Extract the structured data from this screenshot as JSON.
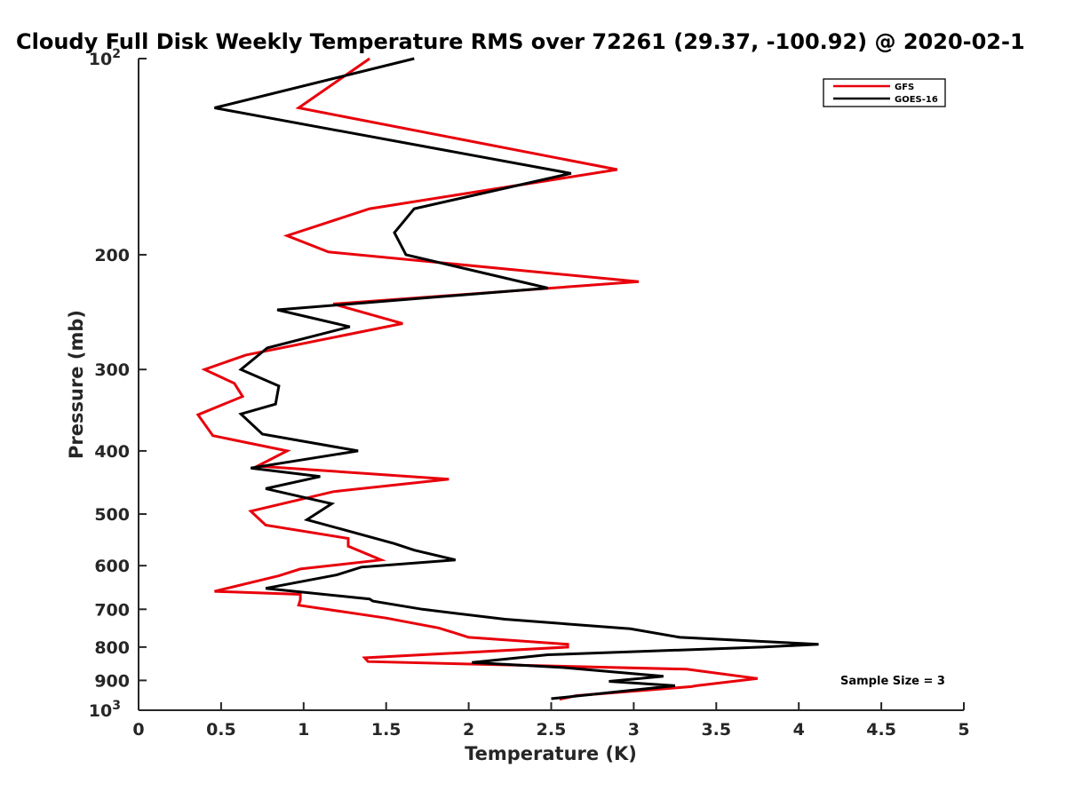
{
  "chart_data": {
    "type": "line",
    "title": "Cloudy Full Disk Weekly Temperature RMS over 72261 (29.37, -100.92) @ 2020-02-1",
    "xlabel": "Temperature (K)",
    "ylabel": "Pressure (mb)",
    "xlim": [
      0,
      5
    ],
    "ylim": [
      100,
      1000
    ],
    "y_scale": "log",
    "y_reversed": true,
    "grid": false,
    "legend_position": "top-right",
    "x_ticks": [
      {
        "value": 0,
        "label": "0"
      },
      {
        "value": 0.5,
        "label": "0.5"
      },
      {
        "value": 1,
        "label": "1"
      },
      {
        "value": 1.5,
        "label": "1.5"
      },
      {
        "value": 2,
        "label": "2"
      },
      {
        "value": 2.5,
        "label": "2.5"
      },
      {
        "value": 3,
        "label": "3"
      },
      {
        "value": 3.5,
        "label": "3.5"
      },
      {
        "value": 4,
        "label": "4"
      },
      {
        "value": 4.5,
        "label": "4.5"
      },
      {
        "value": 5,
        "label": "5"
      }
    ],
    "y_ticks": [
      {
        "value": 100,
        "label": "10",
        "sup": "2"
      },
      {
        "value": 200,
        "label": "200"
      },
      {
        "value": 300,
        "label": "300"
      },
      {
        "value": 400,
        "label": "400"
      },
      {
        "value": 500,
        "label": "500"
      },
      {
        "value": 600,
        "label": "600"
      },
      {
        "value": 700,
        "label": "700"
      },
      {
        "value": 800,
        "label": "800"
      },
      {
        "value": 900,
        "label": "900"
      },
      {
        "value": 1000,
        "label": "10",
        "sup": "3"
      }
    ],
    "annotation": "Sample Size = 3",
    "series": [
      {
        "name": "GFS",
        "color": "#e8000b",
        "points": [
          [
            1.4,
            100
          ],
          [
            0.97,
            119
          ],
          [
            2.9,
            148
          ],
          [
            1.4,
            170
          ],
          [
            0.9,
            187
          ],
          [
            1.15,
            198
          ],
          [
            3.03,
            220
          ],
          [
            1.18,
            238
          ],
          [
            1.6,
            255
          ],
          [
            0.65,
            285
          ],
          [
            0.4,
            300
          ],
          [
            0.58,
            315
          ],
          [
            0.63,
            330
          ],
          [
            0.36,
            352
          ],
          [
            0.45,
            379
          ],
          [
            0.9,
            400
          ],
          [
            0.72,
            422
          ],
          [
            1.88,
            442
          ],
          [
            1.18,
            462
          ],
          [
            0.68,
            495
          ],
          [
            0.77,
            520
          ],
          [
            1.27,
            545
          ],
          [
            1.27,
            560
          ],
          [
            1.47,
            588
          ],
          [
            0.98,
            607
          ],
          [
            0.85,
            622
          ],
          [
            0.46,
            657
          ],
          [
            0.98,
            664
          ],
          [
            0.98,
            677
          ],
          [
            0.97,
            690
          ],
          [
            1.5,
            722
          ],
          [
            1.82,
            748
          ],
          [
            2.0,
            773
          ],
          [
            2.6,
            792
          ],
          [
            2.6,
            800
          ],
          [
            1.37,
            831
          ],
          [
            1.39,
            842
          ],
          [
            3.32,
            865
          ],
          [
            3.75,
            894
          ],
          [
            3.38,
            917
          ],
          [
            3.35,
            920
          ],
          [
            2.65,
            950
          ],
          [
            2.55,
            962
          ]
        ]
      },
      {
        "name": "GOES-16",
        "color": "#000000",
        "points": [
          [
            1.67,
            100
          ],
          [
            0.46,
            119
          ],
          [
            2.62,
            150
          ],
          [
            1.67,
            170
          ],
          [
            1.55,
            185
          ],
          [
            1.62,
            200
          ],
          [
            2.48,
            225
          ],
          [
            0.84,
            243
          ],
          [
            1.28,
            258
          ],
          [
            0.78,
            278
          ],
          [
            0.62,
            300
          ],
          [
            0.85,
            318
          ],
          [
            0.83,
            339
          ],
          [
            0.62,
            351
          ],
          [
            0.75,
            377
          ],
          [
            1.33,
            400
          ],
          [
            0.68,
            425
          ],
          [
            1.1,
            438
          ],
          [
            0.77,
            457
          ],
          [
            1.17,
            482
          ],
          [
            1.02,
            510
          ],
          [
            1.55,
            555
          ],
          [
            1.67,
            568
          ],
          [
            1.92,
            588
          ],
          [
            1.35,
            603
          ],
          [
            1.2,
            620
          ],
          [
            0.77,
            650
          ],
          [
            1.4,
            675
          ],
          [
            1.42,
            680
          ],
          [
            1.72,
            700
          ],
          [
            2.22,
            725
          ],
          [
            2.98,
            750
          ],
          [
            3.28,
            773
          ],
          [
            4.12,
            792
          ],
          [
            3.78,
            800
          ],
          [
            2.48,
            822
          ],
          [
            2.02,
            845
          ],
          [
            2.57,
            860
          ],
          [
            3.18,
            887
          ],
          [
            2.85,
            903
          ],
          [
            3.25,
            917
          ],
          [
            2.5,
            960
          ]
        ]
      }
    ]
  }
}
